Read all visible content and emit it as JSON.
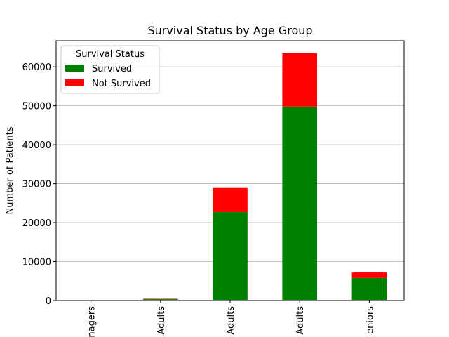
{
  "chart_data": {
    "type": "bar",
    "stacked": true,
    "title": "Survival Status by Age Group",
    "xlabel": "",
    "ylabel": "Number of Patients",
    "categories": [
      "Teenagers",
      "Young Adults",
      "Adults",
      "Middle-aged Adults",
      "Seniors"
    ],
    "category_labels_visible": [
      "nagers",
      "Adults",
      "Adults",
      "Adults",
      "eniors"
    ],
    "series": [
      {
        "name": "Survived",
        "color": "#008000",
        "values": [
          50,
          350,
          22700,
          49800,
          5800
        ]
      },
      {
        "name": "Not Survived",
        "color": "#ff0000",
        "values": [
          10,
          100,
          6200,
          13700,
          1400
        ]
      }
    ],
    "ylim": [
      0,
      66700
    ],
    "yticks": [
      0,
      10000,
      20000,
      30000,
      40000,
      50000,
      60000
    ],
    "grid": "y",
    "legend": {
      "title": "Survival Status",
      "position": "top-left"
    }
  }
}
